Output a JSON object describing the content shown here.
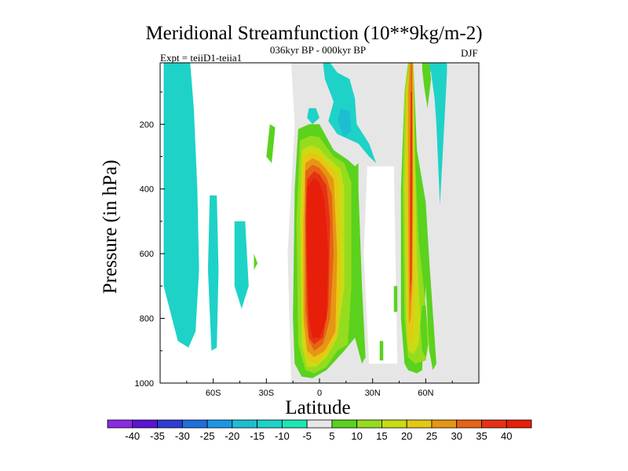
{
  "chart_data": {
    "type": "contour",
    "title": "Meridional Streamfunction (10**9kg/m-2)",
    "experiment": "Expt = teiiD1-teiia1",
    "period": "036kyr BP - 000kyr BP",
    "season": "DJF",
    "xlabel": "Latitude",
    "ylabel": "Pressure (in hPa)",
    "xlim": [
      -90,
      90
    ],
    "ylim": [
      1000,
      10
    ],
    "x_ticks": [
      -60,
      -30,
      0,
      30,
      60
    ],
    "x_tick_labels": [
      "60S",
      "30S",
      "0",
      "30N",
      "60N"
    ],
    "y_ticks": [
      200,
      400,
      600,
      800,
      1000
    ],
    "y_tick_labels": [
      "200",
      "400",
      "600",
      "800",
      "1000"
    ],
    "background_color": "#e6e6e6",
    "colorbar": {
      "labels": [
        "-40",
        "-35",
        "-30",
        "-25",
        "-20",
        "-15",
        "-10",
        "-5",
        "5",
        "10",
        "15",
        "20",
        "25",
        "30",
        "35",
        "40"
      ],
      "colors": [
        "#8a2be2",
        "#5a14d2",
        "#2d3cd2",
        "#1e6edc",
        "#1e96e6",
        "#1ebed2",
        "#1ed2c8",
        "#1ee6b4",
        "#e6e6e6",
        "#5ad21e",
        "#96dc1e",
        "#c8dc14",
        "#e6c814",
        "#e69614",
        "#e66414",
        "#e63214",
        "#e61e0a"
      ]
    },
    "regions": [
      {
        "level": -10,
        "lat": [
          -88,
          -73,
          -71,
          -69,
          -68,
          -70,
          -74,
          -80,
          -88
        ],
        "p": [
          10,
          10,
          150,
          400,
          650,
          840,
          890,
          870,
          700
        ]
      },
      {
        "level": -10,
        "lat": [
          -62,
          -58,
          -57,
          -58,
          -61,
          -63
        ],
        "p": [
          420,
          420,
          650,
          890,
          900,
          650
        ]
      },
      {
        "level": -10,
        "lat": [
          -48,
          -42,
          -40,
          -44,
          -48
        ],
        "p": [
          500,
          500,
          700,
          770,
          700
        ]
      },
      {
        "level": 5,
        "lat": [
          -28,
          -25,
          -27,
          -30
        ],
        "p": [
          200,
          210,
          320,
          300
        ]
      },
      {
        "level": 5,
        "lat": [
          -37,
          -35,
          -37
        ],
        "p": [
          600,
          630,
          650
        ]
      },
      {
        "level": -10,
        "lat": [
          2,
          6,
          10,
          17,
          20,
          21,
          28,
          32,
          28,
          22,
          10,
          5,
          8,
          3
        ],
        "p": [
          10,
          10,
          40,
          60,
          120,
          200,
          260,
          320,
          300,
          260,
          230,
          190,
          130,
          60
        ]
      },
      {
        "level": -10,
        "lat": [
          -6,
          -2,
          0,
          -4,
          -7
        ],
        "p": [
          150,
          150,
          180,
          200,
          180
        ]
      },
      {
        "level": -15,
        "lat": [
          12,
          17,
          18,
          14,
          10
        ],
        "p": [
          150,
          160,
          220,
          240,
          190
        ]
      },
      {
        "level": 5,
        "lat": [
          -12,
          -6,
          0,
          3,
          8,
          16,
          20,
          22,
          22,
          24,
          26,
          24,
          20,
          14,
          4,
          -4,
          -10,
          -14,
          -15,
          -14
        ],
        "p": [
          215,
          200,
          200,
          230,
          280,
          310,
          330,
          320,
          400,
          700,
          920,
          940,
          860,
          900,
          960,
          985,
          980,
          940,
          800,
          400
        ]
      },
      {
        "level": 10,
        "lat": [
          -11,
          -5,
          0,
          4,
          8,
          14,
          18,
          18,
          16,
          10,
          4,
          -3,
          -8,
          -12,
          -13
        ],
        "p": [
          250,
          235,
          240,
          270,
          300,
          320,
          380,
          700,
          880,
          900,
          950,
          970,
          960,
          880,
          500
        ]
      },
      {
        "level": 15,
        "lat": [
          -10,
          -5,
          0,
          4,
          8,
          12,
          14,
          14,
          10,
          4,
          -2,
          -7,
          -10,
          -11
        ],
        "p": [
          280,
          265,
          275,
          300,
          320,
          340,
          400,
          700,
          860,
          920,
          950,
          950,
          880,
          500
        ]
      },
      {
        "level": 20,
        "lat": [
          -9,
          -5,
          0,
          4,
          8,
          11,
          12,
          10,
          4,
          -2,
          -7,
          -9,
          -10
        ],
        "p": [
          300,
          285,
          295,
          320,
          340,
          380,
          700,
          850,
          910,
          940,
          930,
          850,
          500
        ]
      },
      {
        "level": 25,
        "lat": [
          -8,
          -4,
          0,
          4,
          8,
          10,
          9,
          3,
          -3,
          -7,
          -9,
          -9
        ],
        "p": [
          320,
          305,
          315,
          340,
          370,
          600,
          840,
          900,
          920,
          900,
          800,
          500
        ]
      },
      {
        "level": 30,
        "lat": [
          -8,
          -4,
          0,
          4,
          7,
          8,
          6,
          2,
          -3,
          -6,
          -8,
          -8
        ],
        "p": [
          345,
          325,
          335,
          365,
          420,
          600,
          800,
          880,
          900,
          870,
          780,
          500
        ]
      },
      {
        "level": 35,
        "lat": [
          -7,
          -3,
          0,
          4,
          6,
          5,
          2,
          -3,
          -6,
          -7,
          -8
        ],
        "p": [
          370,
          345,
          355,
          390,
          500,
          760,
          860,
          880,
          860,
          760,
          500
        ]
      },
      {
        "level": 40,
        "lat": [
          -7,
          -3,
          0,
          3,
          5,
          4,
          0,
          -4,
          -6,
          -7
        ],
        "p": [
          395,
          365,
          380,
          440,
          600,
          800,
          860,
          860,
          800,
          600
        ]
      },
      {
        "level": 5,
        "lat": [
          50,
          53,
          55,
          60,
          62,
          66,
          64,
          62,
          60,
          58,
          55,
          50,
          48,
          46,
          46,
          48
        ],
        "p": [
          10,
          10,
          280,
          440,
          620,
          940,
          960,
          900,
          700,
          960,
          970,
          960,
          940,
          800,
          400,
          100
        ]
      },
      {
        "level": 10,
        "lat": [
          50,
          53,
          54,
          56,
          60,
          62,
          60,
          54,
          50,
          48,
          47,
          48
        ],
        "p": [
          10,
          10,
          300,
          560,
          760,
          870,
          930,
          940,
          920,
          800,
          400,
          100
        ]
      },
      {
        "level": 15,
        "lat": [
          51,
          53,
          54,
          55,
          57,
          56,
          53,
          50,
          49,
          48,
          49
        ],
        "p": [
          10,
          10,
          350,
          620,
          800,
          880,
          910,
          900,
          800,
          400,
          100
        ]
      },
      {
        "level": 20,
        "lat": [
          51,
          53,
          53,
          54,
          53,
          52,
          50,
          49,
          49
        ],
        "p": [
          10,
          10,
          400,
          700,
          860,
          880,
          860,
          400,
          100
        ]
      },
      {
        "level": 25,
        "lat": [
          51,
          52.5,
          53,
          52.5,
          51.5,
          50.5,
          50,
          50
        ],
        "p": [
          10,
          10,
          400,
          700,
          800,
          820,
          400,
          100
        ]
      },
      {
        "level": 30,
        "lat": [
          51.5,
          52.5,
          52.5,
          52,
          51,
          51
        ],
        "p": [
          10,
          10,
          400,
          700,
          760,
          400
        ]
      },
      {
        "level": 35,
        "lat": [
          51.5,
          52.3,
          52.3,
          52,
          51.4,
          51.3
        ],
        "p": [
          100,
          100,
          400,
          680,
          700,
          400
        ]
      },
      {
        "level": -10,
        "lat": [
          60,
          67,
          72,
          72,
          70,
          68,
          67,
          66,
          65,
          63
        ],
        "p": [
          10,
          10,
          12,
          40,
          250,
          450,
          320,
          200,
          120,
          40
        ]
      },
      {
        "level": 5,
        "lat": [
          58,
          62,
          63,
          61,
          59,
          58
        ],
        "p": [
          10,
          10,
          60,
          150,
          80,
          30
        ]
      },
      {
        "level": 5,
        "lat": [
          58,
          60,
          61,
          60,
          58,
          57
        ],
        "p": [
          760,
          760,
          880,
          920,
          900,
          820
        ]
      },
      {
        "level": 5,
        "lat": [
          34,
          36,
          36,
          34
        ],
        "p": [
          870,
          870,
          930,
          930
        ]
      },
      {
        "level": 5,
        "lat": [
          42,
          44,
          44,
          42
        ],
        "p": [
          700,
          700,
          780,
          780
        ]
      }
    ]
  }
}
